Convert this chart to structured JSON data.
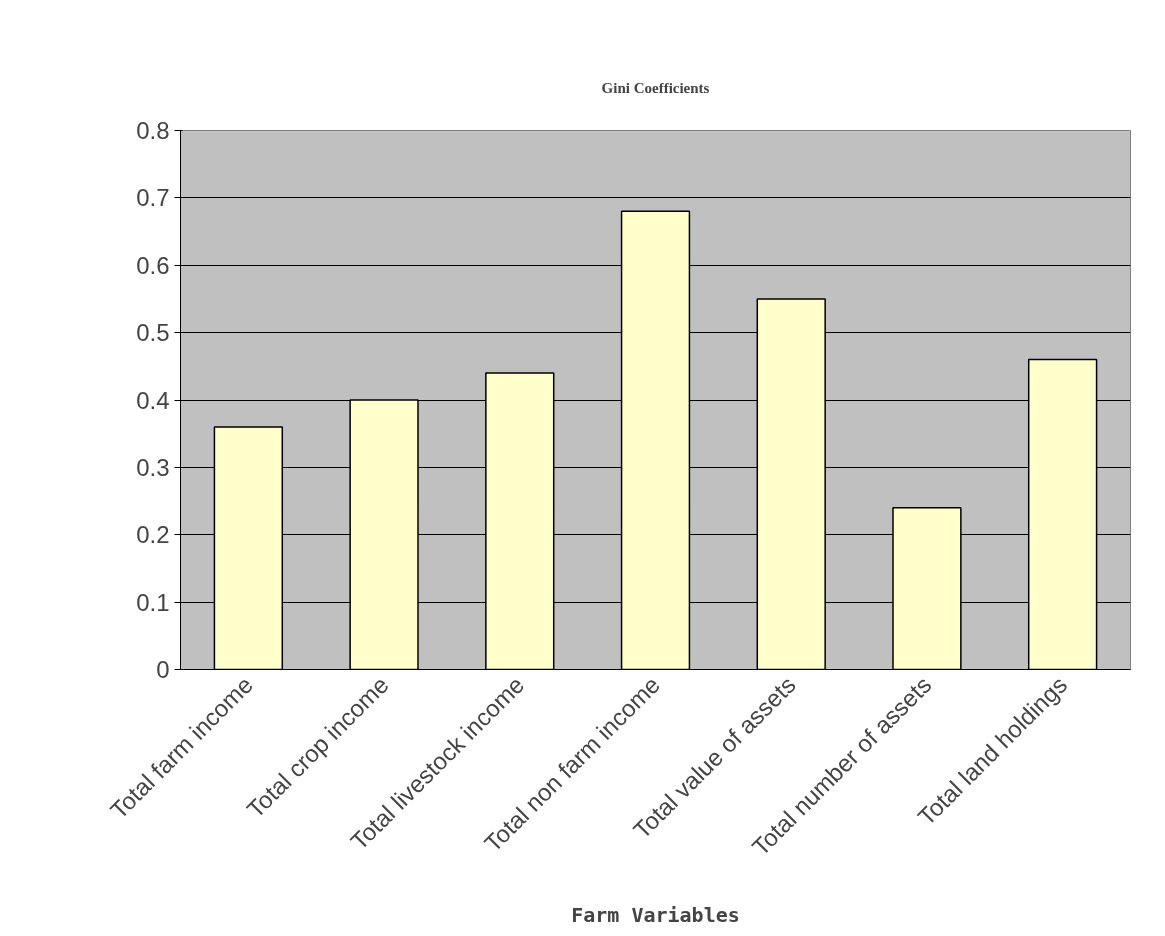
{
  "chart_data": {
    "type": "bar",
    "title": "Gini Coefficients",
    "xlabel": "Farm Variables",
    "categories": [
      "Total farm income",
      "Total crop income",
      "Total livestock income",
      "Total non farm income",
      "Total value of assets",
      "Total number of assets",
      "Total land holdings"
    ],
    "values": [
      0.36,
      0.4,
      0.44,
      0.68,
      0.55,
      0.24,
      0.46
    ],
    "color": "#ffffcc",
    "ylim": [
      0,
      0.8
    ],
    "yticks": [
      0,
      0.1,
      0.2,
      0.3,
      0.4,
      0.5,
      0.6,
      0.7,
      0.8
    ],
    "grid": "y"
  }
}
